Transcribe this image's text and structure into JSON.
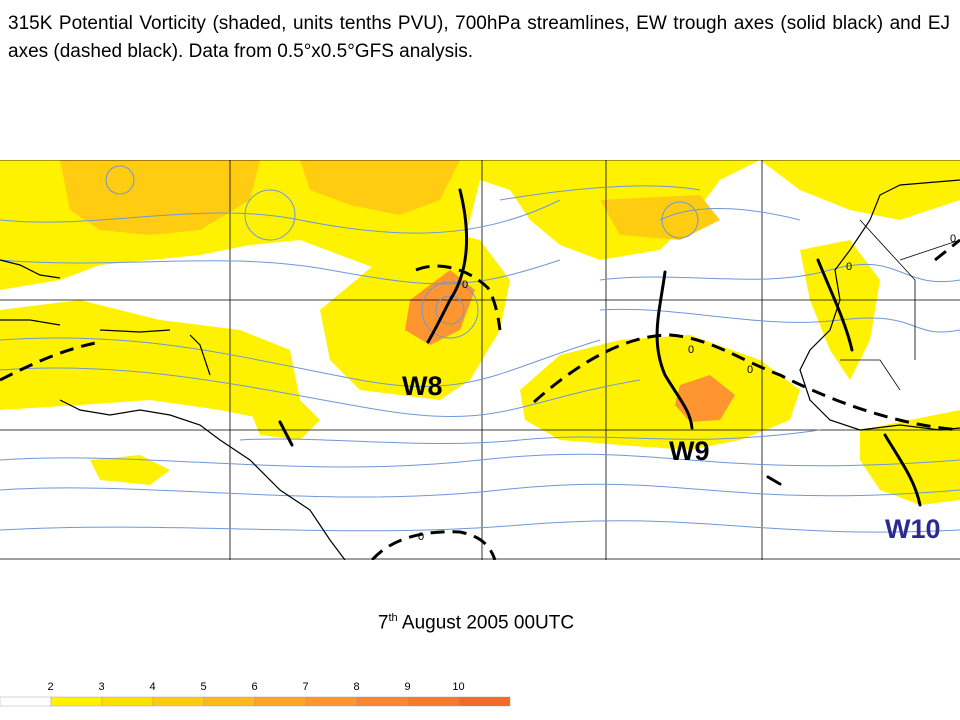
{
  "caption": "315K Potential Vorticity (shaded, units tenths PVU), 700hPa streamlines, EW trough axes (solid black) and EJ axes (dashed black). Data from 0.5°x0.5°GFS analysis.",
  "date": {
    "day": "7",
    "suffix": "th",
    "rest": " August 2005 00UTC"
  },
  "wave_labels": [
    "W8",
    "W9",
    "W10"
  ],
  "contour_labels": [
    "0",
    "0",
    "0",
    "0",
    "0",
    "0"
  ],
  "legend": {
    "ticks": [
      "2",
      "3",
      "4",
      "5",
      "6",
      "7",
      "8",
      "9",
      "10"
    ],
    "colors": [
      "#ffffff",
      "#fef200",
      "#ffe000",
      "#ffcc11",
      "#ffb81f",
      "#ffa52a",
      "#ff9530",
      "#fb8531",
      "#f87a2e",
      "#f26b27"
    ]
  },
  "colors": {
    "streamline": "#6f97d8",
    "coast": "#000000",
    "w10_label": "#2b2a8f"
  }
}
